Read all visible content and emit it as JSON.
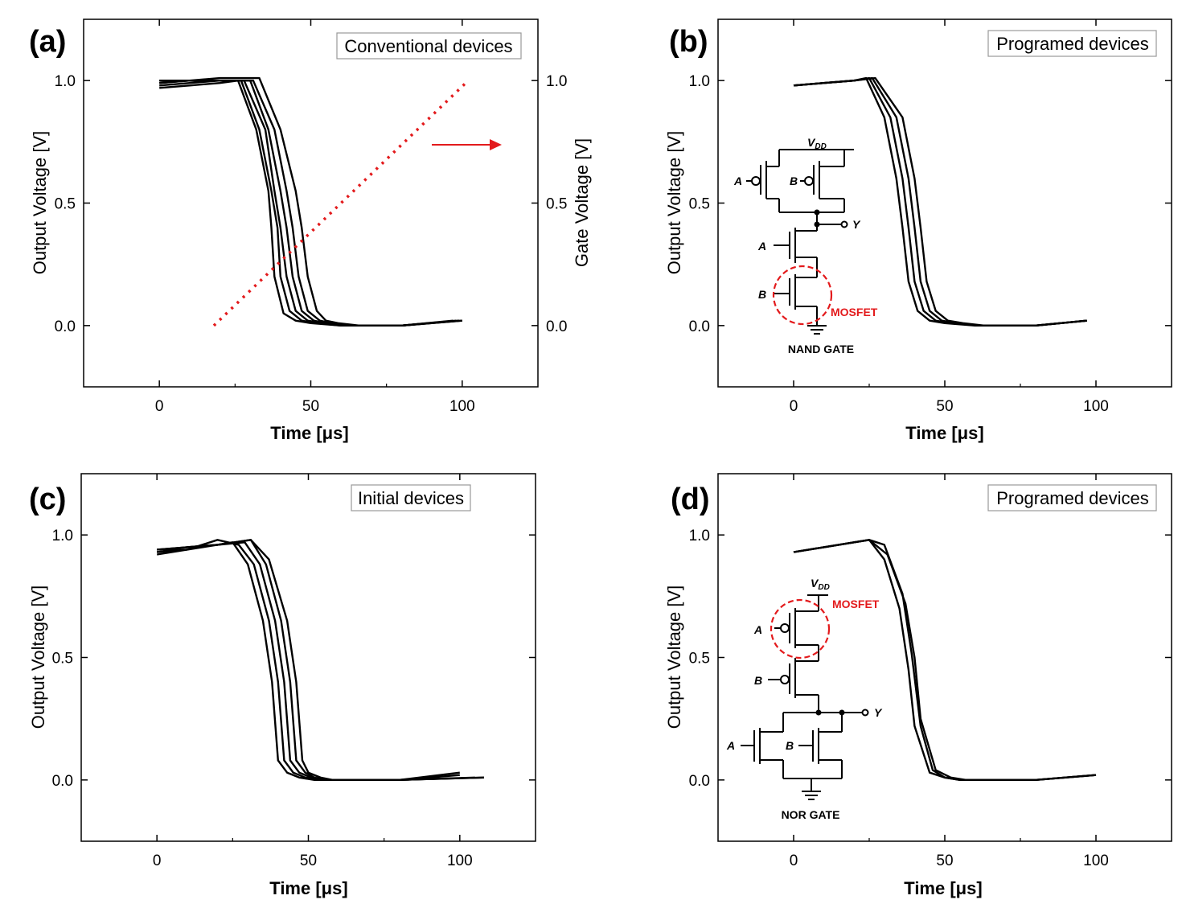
{
  "chart_data": [
    {
      "id": "a",
      "type": "line",
      "panel_label": "(a)",
      "legend": "Conventional devices",
      "xlabel": "Time [μs]",
      "ylabel": "Output Voltage [V]",
      "y2label": "Gate Voltage [V]",
      "xlim": [
        -25,
        125
      ],
      "ylim": [
        -0.25,
        1.25
      ],
      "xticks": [
        0,
        50,
        100
      ],
      "xtick_labels": [
        "0",
        "50",
        "100"
      ],
      "yticks": [
        0.0,
        0.5,
        1.0
      ],
      "ytick_labels": [
        "0.0",
        "0.5",
        "1.0"
      ],
      "y2tick_labels": [
        "0.0",
        "0.5",
        "1.0"
      ],
      "series": [
        {
          "x": [
            0,
            10,
            20,
            26,
            32,
            36,
            37,
            38,
            41,
            45,
            50,
            60,
            80,
            97
          ],
          "y": [
            0.97,
            0.98,
            0.99,
            1.0,
            0.8,
            0.55,
            0.4,
            0.2,
            0.05,
            0.02,
            0.01,
            0.0,
            0.0,
            0.02
          ]
        },
        {
          "x": [
            0,
            10,
            20,
            27,
            33,
            37,
            39,
            40,
            43,
            47,
            52,
            60,
            80,
            98
          ],
          "y": [
            0.98,
            0.99,
            1.0,
            1.0,
            0.8,
            0.55,
            0.4,
            0.2,
            0.06,
            0.02,
            0.01,
            0.0,
            0.0,
            0.02
          ]
        },
        {
          "x": [
            0,
            10,
            20,
            28,
            35,
            38,
            40,
            42,
            45,
            49,
            54,
            62,
            80,
            99
          ],
          "y": [
            0.99,
            1.0,
            1.0,
            1.0,
            0.8,
            0.55,
            0.4,
            0.2,
            0.06,
            0.02,
            0.01,
            0.0,
            0.0,
            0.02
          ]
        },
        {
          "x": [
            0,
            10,
            20,
            30,
            36,
            40,
            42,
            44,
            47,
            51,
            55,
            63,
            80,
            99
          ],
          "y": [
            0.99,
            1.0,
            1.0,
            1.0,
            0.8,
            0.55,
            0.4,
            0.2,
            0.06,
            0.02,
            0.01,
            0.0,
            0.0,
            0.02
          ]
        },
        {
          "x": [
            0,
            10,
            20,
            31,
            38,
            42,
            44,
            46,
            49,
            53,
            57,
            64,
            80,
            100
          ],
          "y": [
            1.0,
            1.0,
            1.0,
            1.0,
            0.8,
            0.55,
            0.4,
            0.2,
            0.06,
            0.02,
            0.01,
            0.0,
            0.0,
            0.02
          ]
        },
        {
          "x": [
            0,
            10,
            20,
            33,
            40,
            45,
            47,
            49,
            52,
            55,
            59,
            66,
            80,
            100
          ],
          "y": [
            1.0,
            1.0,
            1.01,
            1.01,
            0.8,
            0.55,
            0.4,
            0.2,
            0.06,
            0.02,
            0.01,
            0.0,
            0.0,
            0.02
          ]
        }
      ],
      "gate_ramp": {
        "x": [
          18,
          102
        ],
        "y2": [
          0.0,
          1.0
        ]
      },
      "arrow_direction": "right"
    },
    {
      "id": "b",
      "type": "line",
      "panel_label": "(b)",
      "legend": "Programed devices",
      "xlabel": "Time [μs]",
      "ylabel": "Output Voltage [V]",
      "xlim": [
        -25,
        125
      ],
      "ylim": [
        -0.25,
        1.25
      ],
      "xticks": [
        0,
        50,
        100
      ],
      "xtick_labels": [
        "0",
        "50",
        "100"
      ],
      "yticks": [
        0.0,
        0.5,
        1.0
      ],
      "ytick_labels": [
        "0.0",
        "0.5",
        "1.0"
      ],
      "series": [
        {
          "x": [
            0,
            10,
            20,
            24,
            30,
            34,
            36,
            38,
            41,
            45,
            50,
            60,
            80,
            97
          ],
          "y": [
            0.98,
            0.99,
            1.0,
            1.01,
            0.85,
            0.6,
            0.4,
            0.18,
            0.06,
            0.02,
            0.01,
            0.0,
            0.0,
            0.02
          ]
        },
        {
          "x": [
            0,
            10,
            20,
            25,
            32,
            36,
            38,
            40,
            43,
            47,
            52,
            61,
            80,
            97
          ],
          "y": [
            0.98,
            0.99,
            1.0,
            1.01,
            0.85,
            0.6,
            0.4,
            0.18,
            0.06,
            0.02,
            0.01,
            0.0,
            0.0,
            0.02
          ]
        },
        {
          "x": [
            0,
            10,
            20,
            26,
            34,
            38,
            40,
            42,
            45,
            49,
            54,
            62,
            80,
            97
          ],
          "y": [
            0.98,
            0.99,
            1.0,
            1.01,
            0.85,
            0.6,
            0.4,
            0.18,
            0.06,
            0.02,
            0.01,
            0.0,
            0.0,
            0.02
          ]
        },
        {
          "x": [
            0,
            10,
            20,
            27,
            36,
            40,
            42,
            44,
            47,
            51,
            56,
            63,
            80,
            97
          ],
          "y": [
            0.98,
            0.99,
            1.0,
            1.01,
            0.85,
            0.6,
            0.4,
            0.18,
            0.06,
            0.02,
            0.01,
            0.0,
            0.0,
            0.02
          ]
        }
      ],
      "inset": {
        "type": "nand",
        "vdd": "V",
        "vdd_sub": "DD",
        "labels": [
          "A",
          "B",
          "Y",
          "A",
          "B"
        ],
        "highlight": "MOSFET",
        "name": "NAND GATE"
      }
    },
    {
      "id": "c",
      "type": "line",
      "panel_label": "(c)",
      "legend": "Initial devices",
      "xlabel": "Time [μs]",
      "ylabel": "Output Voltage [V]",
      "xlim": [
        -25,
        125
      ],
      "ylim": [
        -0.25,
        1.25
      ],
      "xticks": [
        0,
        50,
        100
      ],
      "xtick_labels": [
        "0",
        "50",
        "100"
      ],
      "yticks": [
        0.0,
        0.5,
        1.0
      ],
      "ytick_labels": [
        "0.0",
        "0.5",
        "1.0"
      ],
      "series": [
        {
          "x": [
            0,
            10,
            20,
            25,
            30,
            35,
            38,
            40,
            43,
            47,
            52,
            60,
            80,
            100
          ],
          "y": [
            0.92,
            0.94,
            0.96,
            0.97,
            0.88,
            0.65,
            0.4,
            0.08,
            0.03,
            0.01,
            0.0,
            0.0,
            0.0,
            0.02
          ]
        },
        {
          "x": [
            0,
            10,
            20,
            27,
            32,
            37,
            40,
            42,
            45,
            49,
            54,
            62,
            80,
            100
          ],
          "y": [
            0.93,
            0.94,
            0.98,
            0.96,
            0.88,
            0.65,
            0.4,
            0.08,
            0.03,
            0.01,
            0.0,
            0.0,
            0.0,
            0.03
          ]
        },
        {
          "x": [
            0,
            10,
            20,
            29,
            34,
            39,
            42,
            44,
            47,
            51,
            55,
            63,
            80,
            105
          ],
          "y": [
            0.93,
            0.95,
            0.96,
            0.97,
            0.88,
            0.65,
            0.4,
            0.08,
            0.03,
            0.01,
            0.0,
            0.0,
            0.0,
            0.01
          ]
        },
        {
          "x": [
            0,
            10,
            20,
            31,
            36,
            41,
            44,
            46,
            49,
            52,
            56,
            64,
            80,
            108
          ],
          "y": [
            0.94,
            0.95,
            0.96,
            0.98,
            0.88,
            0.65,
            0.4,
            0.08,
            0.03,
            0.01,
            0.0,
            0.0,
            0.0,
            0.01
          ]
        },
        {
          "x": [
            0,
            10,
            20,
            31,
            37,
            43,
            46,
            48,
            50,
            54,
            58,
            65,
            80,
            108
          ],
          "y": [
            0.94,
            0.95,
            0.96,
            0.98,
            0.9,
            0.65,
            0.4,
            0.08,
            0.03,
            0.01,
            0.0,
            0.0,
            0.0,
            0.01
          ]
        }
      ]
    },
    {
      "id": "d",
      "type": "line",
      "panel_label": "(d)",
      "legend": "Programed devices",
      "xlabel": "Time [μs]",
      "ylabel": "Output Voltage [V]",
      "xlim": [
        -25,
        125
      ],
      "ylim": [
        -0.25,
        1.25
      ],
      "xticks": [
        0,
        50,
        100
      ],
      "xtick_labels": [
        "0",
        "50",
        "100"
      ],
      "yticks": [
        0.0,
        0.5,
        1.0
      ],
      "ytick_labels": [
        "0.0",
        "0.5",
        "1.0"
      ],
      "series": [
        {
          "x": [
            0,
            10,
            20,
            25,
            30,
            35,
            38,
            40,
            45,
            50,
            55,
            65,
            80,
            100
          ],
          "y": [
            0.93,
            0.95,
            0.97,
            0.98,
            0.9,
            0.7,
            0.45,
            0.22,
            0.03,
            0.01,
            0.0,
            0.0,
            0.0,
            0.02
          ]
        },
        {
          "x": [
            0,
            10,
            20,
            25,
            31,
            37,
            40,
            42,
            47,
            52,
            57,
            66,
            80,
            100
          ],
          "y": [
            0.93,
            0.95,
            0.97,
            0.98,
            0.92,
            0.72,
            0.5,
            0.25,
            0.04,
            0.01,
            0.0,
            0.0,
            0.0,
            0.02
          ]
        },
        {
          "x": [
            0,
            10,
            20,
            25,
            30,
            36,
            39,
            42,
            46,
            50,
            55,
            65,
            80,
            100
          ],
          "y": [
            0.93,
            0.95,
            0.97,
            0.98,
            0.96,
            0.76,
            0.52,
            0.22,
            0.04,
            0.01,
            0.0,
            0.0,
            0.0,
            0.02
          ]
        }
      ],
      "inset": {
        "type": "nor",
        "vdd": "V",
        "vdd_sub": "DD",
        "labels": [
          "A",
          "B",
          "Y",
          "A",
          "B"
        ],
        "highlight": "MOSFET",
        "name": "NOR GATE"
      }
    }
  ]
}
